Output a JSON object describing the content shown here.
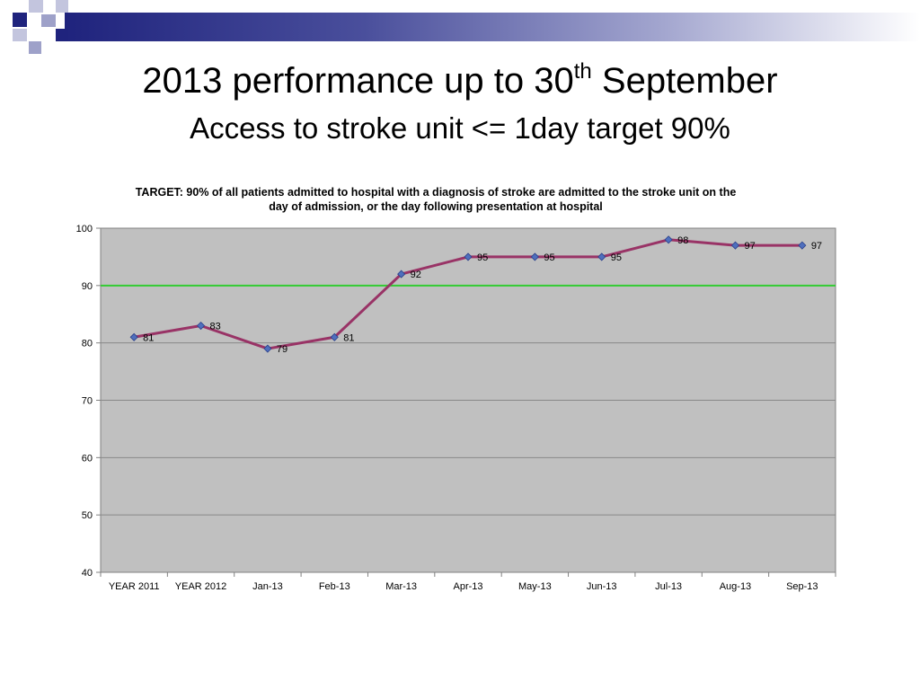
{
  "slide": {
    "title_main": "2013 performance up to 30",
    "title_sup": "th",
    "title_end": " September",
    "subtitle": "Access to stroke unit <= 1day target 90%"
  },
  "colors": {
    "brand_dark": "#1f237d",
    "plot_bg": "#c0c0c0",
    "line": "#993366",
    "marker": "#4f6fbd",
    "target_line": "#33cc33",
    "grid": "#888888"
  },
  "chart_data": {
    "type": "line",
    "title": "TARGET:  90% of all patients admitted to hospital with a diagnosis of stroke are admitted to the stroke unit on the day of admission, or the day following presentation at hospital",
    "categories": [
      "YEAR 2011",
      "YEAR 2012",
      "Jan-13",
      "Feb-13",
      "Mar-13",
      "Apr-13",
      "May-13",
      "Jun-13",
      "Jul-13",
      "Aug-13",
      "Sep-13"
    ],
    "series": [
      {
        "values": [
          81,
          83,
          79,
          81,
          92,
          95,
          95,
          95,
          98,
          97,
          97
        ]
      }
    ],
    "target": 90,
    "ylim": [
      40,
      100
    ],
    "yticks": [
      40,
      50,
      60,
      70,
      80,
      90,
      100
    ],
    "grid": true,
    "legend": "none",
    "data_labels": true
  }
}
